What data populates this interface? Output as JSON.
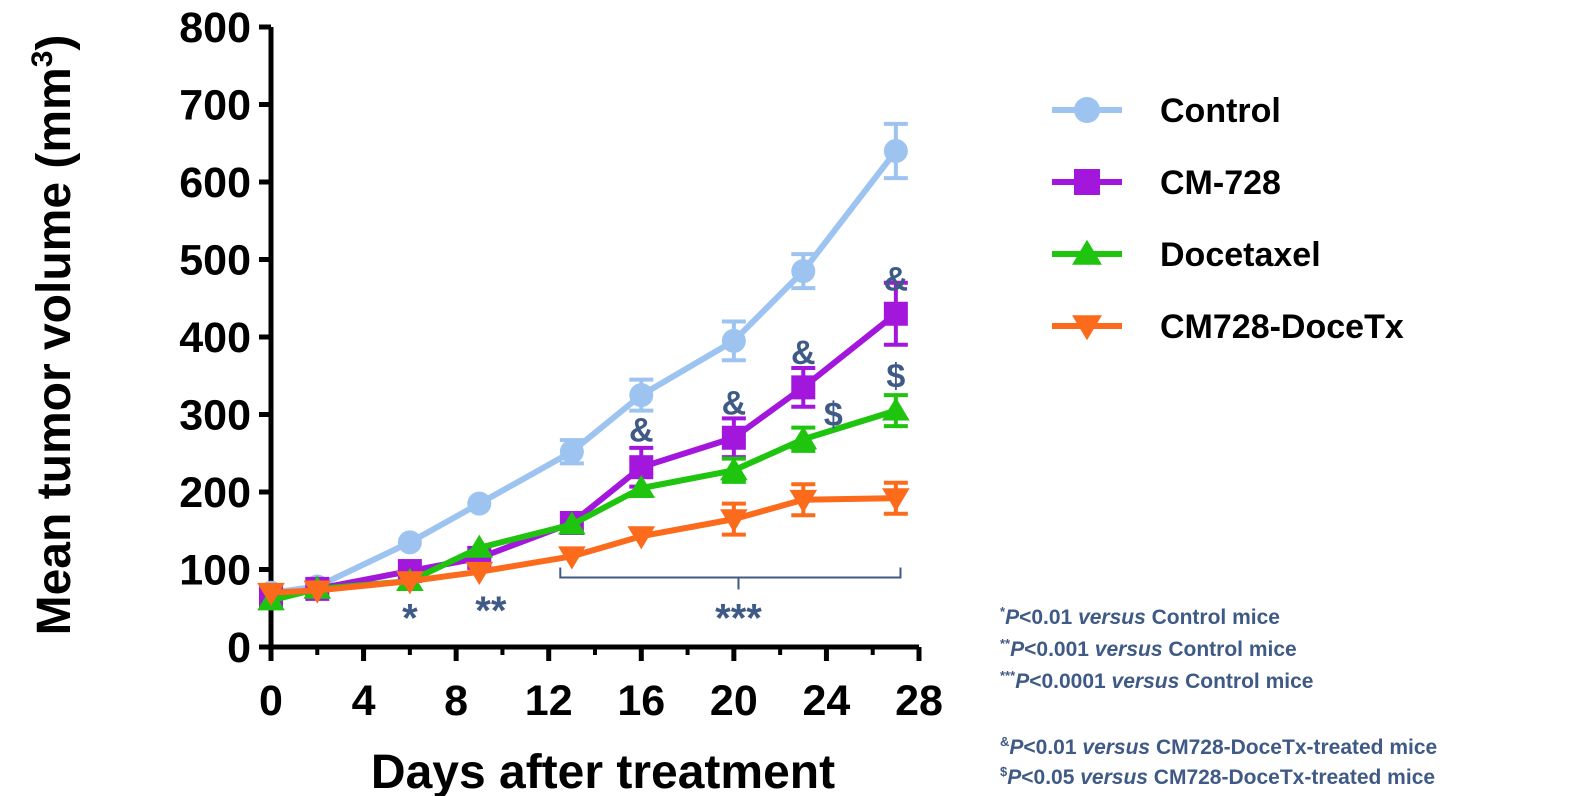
{
  "chart_data": {
    "type": "line",
    "xlabel": "Days after treatment",
    "ylabel": "Mean tumor volume (mm",
    "ylabel_sup": "3",
    "ylabel_close": ")",
    "xlim": [
      0,
      28
    ],
    "ylim": [
      0,
      800
    ],
    "xticks": [
      "0",
      "4",
      "8",
      "12",
      "16",
      "20",
      "24",
      "28"
    ],
    "yticks": [
      "0",
      "100",
      "200",
      "300",
      "400",
      "500",
      "600",
      "700",
      "800"
    ],
    "grid": false,
    "legend_position": "right",
    "series": [
      {
        "name": "Control",
        "color": "#9dc3f0",
        "marker": "circle",
        "x": [
          0,
          2,
          6,
          9,
          13,
          16,
          20,
          23,
          27
        ],
        "y": [
          70,
          78,
          135,
          185,
          252,
          325,
          395,
          485,
          640
        ],
        "err": [
          0,
          0,
          0,
          0,
          15,
          20,
          25,
          22,
          35
        ]
      },
      {
        "name": "CM-728",
        "color": "#a316db",
        "marker": "square",
        "x": [
          0,
          2,
          6,
          9,
          13,
          16,
          20,
          23,
          27
        ],
        "y": [
          65,
          75,
          98,
          115,
          160,
          232,
          270,
          335,
          430
        ],
        "err": [
          0,
          0,
          0,
          0,
          0,
          25,
          25,
          25,
          40
        ]
      },
      {
        "name": "Docetaxel",
        "color": "#1ec40e",
        "marker": "triangle-up",
        "x": [
          0,
          2,
          6,
          9,
          13,
          16,
          20,
          23,
          27
        ],
        "y": [
          60,
          75,
          85,
          128,
          158,
          205,
          228,
          268,
          305
        ],
        "err": [
          0,
          0,
          0,
          0,
          0,
          0,
          15,
          15,
          20
        ]
      },
      {
        "name": "CM728-DoceTx",
        "color": "#fc6a1c",
        "marker": "triangle-down",
        "x": [
          0,
          2,
          6,
          9,
          13,
          16,
          20,
          23,
          27
        ],
        "y": [
          70,
          73,
          85,
          97,
          117,
          143,
          165,
          190,
          192
        ],
        "err": [
          0,
          0,
          0,
          0,
          0,
          0,
          20,
          20,
          20
        ]
      }
    ],
    "annotations": {
      "star1": "*",
      "star2": "**",
      "star3": "***",
      "amp": "&",
      "dollar": "$"
    },
    "footnotes": {
      "line1_mark": "*",
      "line1_p": "P",
      "line1_rest": "<0.01 ",
      "line1_versus": "versus",
      "line1_tail": " Control mice",
      "line2_mark": "**",
      "line2_p": "P",
      "line2_rest": "<0.001 ",
      "line2_versus": "versus",
      "line2_tail": " Control mice",
      "line3_mark": "***",
      "line3_p": "P",
      "line3_rest": "<0.0001 ",
      "line3_versus": "versus",
      "line3_tail": " Control mice",
      "line4_mark": "&",
      "line4_p": "P",
      "line4_rest": "<0.01 ",
      "line4_versus": "versus",
      "line4_tail": " CM728-DoceTx-treated mice",
      "line5_mark": "$",
      "line5_p": "P",
      "line5_rest": "<0.05 ",
      "line5_versus": "versus",
      "line5_tail": " CM728-DoceTx-treated mice"
    }
  }
}
